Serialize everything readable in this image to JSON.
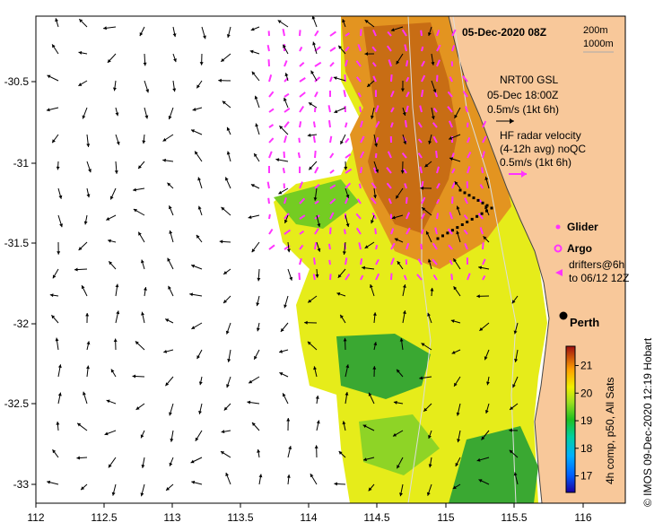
{
  "map": {
    "title": "05-Dec-2020 08Z",
    "depth_legend": [
      "200m",
      "1000m"
    ],
    "x_ticks": [
      "112",
      "112.5",
      "113",
      "113.5",
      "114",
      "114.5",
      "115",
      "115.5",
      "116"
    ],
    "y_ticks": [
      "-30.5",
      "-31",
      "-31.5",
      "-32",
      "-32.5",
      "-33"
    ],
    "model_legend": [
      "NRT00 GSL",
      "05-Dec 18:00Z",
      "0.5m/s (1kt 6h)"
    ],
    "radar_legend": [
      "HF radar velocity",
      "(4-12h avg) noQC",
      "0.5m/s (1kt 6h)"
    ],
    "glider_label": "Glider",
    "argo_label": "Argo",
    "drifters_label": [
      "drifters@6h",
      "to 06/12 12Z"
    ],
    "city_label": "Perth",
    "colorbar_ticks": [
      "17",
      "18",
      "19",
      "20",
      "21"
    ],
    "colorbar_title": "4h comp, p50, All Sats",
    "credit": "© IMOS 09-Dec-2020 12:19 Hobart",
    "colors": {
      "land": "#f8c89a",
      "model_arrows": "#000000",
      "radar_arrows": "#ff33ff",
      "glider": "#000000",
      "isobaths": "#dddddd"
    }
  }
}
